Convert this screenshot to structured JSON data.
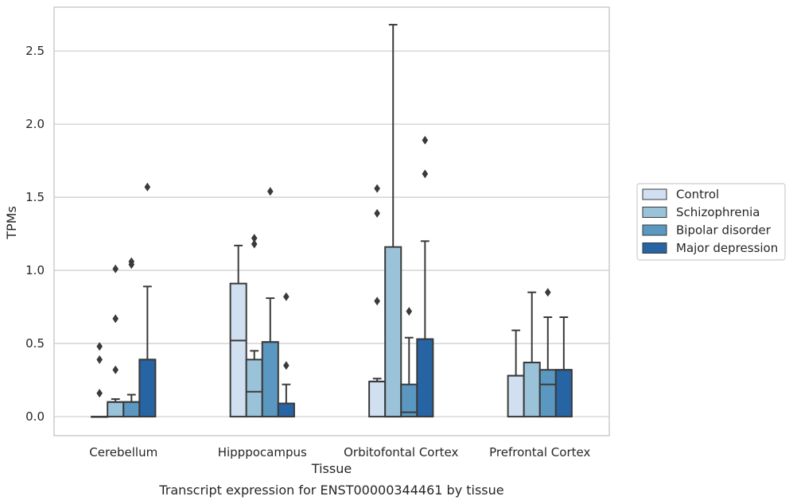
{
  "chart_data": {
    "type": "box",
    "xlabel": "Tissue",
    "ylabel": "TPMs",
    "caption": "Transcript expression for ENST00000344461 by tissue",
    "categories": [
      "Cerebellum",
      "Hipppocampus",
      "Orbitofontal Cortex",
      "Prefrontal Cortex"
    ],
    "ylim": [
      -0.13,
      2.8
    ],
    "yticks": [
      0.0,
      0.5,
      1.0,
      1.5,
      2.0,
      2.5
    ],
    "ytick_labels": [
      "0.0",
      "0.5",
      "1.0",
      "1.5",
      "2.0",
      "2.5"
    ],
    "grid": "horizontal",
    "legend_position": "right",
    "series": [
      {
        "name": "Control",
        "color": "#d0e0f0",
        "boxes": [
          {
            "q1": 0.0,
            "median": 0.0,
            "q3": 0.0,
            "whisker_low": 0.0,
            "whisker_high": 0.0,
            "outliers": [
              0.16,
              0.39,
              0.48
            ]
          },
          {
            "q1": 0.0,
            "median": 0.52,
            "q3": 0.91,
            "whisker_low": 0.0,
            "whisker_high": 1.17,
            "outliers": []
          },
          {
            "q1": 0.0,
            "median": 0.24,
            "q3": 0.24,
            "whisker_low": 0.0,
            "whisker_high": 0.26,
            "outliers": [
              0.79,
              1.39,
              1.56
            ]
          },
          {
            "q1": 0.0,
            "median": 0.28,
            "q3": 0.28,
            "whisker_low": 0.0,
            "whisker_high": 0.59,
            "outliers": []
          }
        ]
      },
      {
        "name": "Schizophrenia",
        "color": "#9ac3da",
        "boxes": [
          {
            "q1": 0.0,
            "median": 0.1,
            "q3": 0.1,
            "whisker_low": 0.0,
            "whisker_high": 0.12,
            "outliers": [
              0.32,
              0.67,
              1.01
            ]
          },
          {
            "q1": 0.0,
            "median": 0.17,
            "q3": 0.39,
            "whisker_low": 0.0,
            "whisker_high": 0.45,
            "outliers": [
              1.18,
              1.22
            ]
          },
          {
            "q1": 0.0,
            "median": 0.0,
            "q3": 1.16,
            "whisker_low": 0.0,
            "whisker_high": 2.68,
            "outliers": []
          },
          {
            "q1": 0.0,
            "median": 0.37,
            "q3": 0.37,
            "whisker_low": 0.0,
            "whisker_high": 0.85,
            "outliers": []
          }
        ]
      },
      {
        "name": "Bipolar disorder",
        "color": "#5a98c2",
        "boxes": [
          {
            "q1": 0.0,
            "median": 0.1,
            "q3": 0.1,
            "whisker_low": 0.0,
            "whisker_high": 0.15,
            "outliers": [
              1.04,
              1.06
            ]
          },
          {
            "q1": 0.0,
            "median": 0.51,
            "q3": 0.51,
            "whisker_low": 0.0,
            "whisker_high": 0.81,
            "outliers": [
              1.54
            ]
          },
          {
            "q1": 0.0,
            "median": 0.03,
            "q3": 0.22,
            "whisker_low": 0.0,
            "whisker_high": 0.54,
            "outliers": [
              0.72
            ]
          },
          {
            "q1": 0.0,
            "median": 0.22,
            "q3": 0.32,
            "whisker_low": 0.0,
            "whisker_high": 0.68,
            "outliers": [
              0.85
            ]
          }
        ]
      },
      {
        "name": "Major depression",
        "color": "#2764a3",
        "boxes": [
          {
            "q1": 0.0,
            "median": 0.39,
            "q3": 0.39,
            "whisker_low": 0.0,
            "whisker_high": 0.89,
            "outliers": [
              1.57
            ]
          },
          {
            "q1": 0.0,
            "median": 0.09,
            "q3": 0.09,
            "whisker_low": 0.0,
            "whisker_high": 0.22,
            "outliers": [
              0.35,
              0.82
            ]
          },
          {
            "q1": 0.0,
            "median": 0.53,
            "q3": 0.53,
            "whisker_low": 0.0,
            "whisker_high": 1.2,
            "outliers": [
              1.66,
              1.89
            ]
          },
          {
            "q1": 0.0,
            "median": 0.32,
            "q3": 0.32,
            "whisker_low": 0.0,
            "whisker_high": 0.68,
            "outliers": []
          }
        ]
      }
    ]
  }
}
